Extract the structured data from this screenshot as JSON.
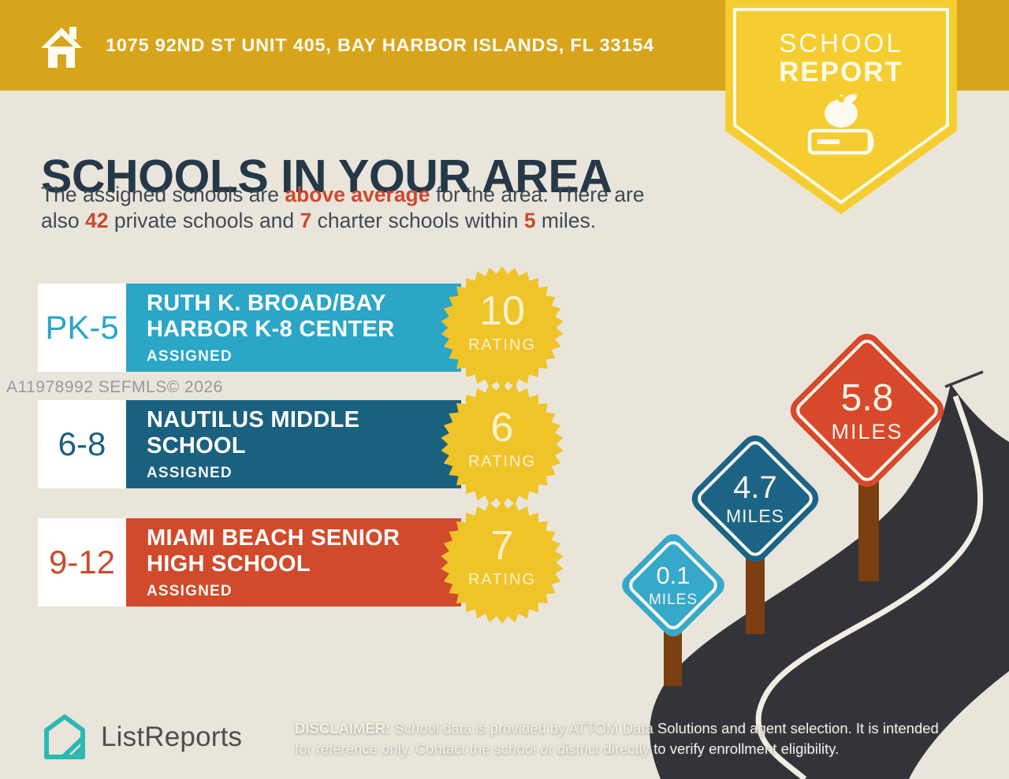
{
  "colors": {
    "header_gold": "#D7A41C",
    "ribbon_yellow": "#F5CD31",
    "background_beige": "#EAE5DB",
    "title_navy": "#253847",
    "accent_red": "#CE492E",
    "elementary_teal": "#2BA6C7",
    "middle_blue": "#1A607F",
    "high_red": "#D14A2B",
    "badge_yellow": "#EFC429",
    "road_charcoal": "#33343A",
    "post_brown": "#7A3E10",
    "brand_teal": "#2CB9B2"
  },
  "header": {
    "address": "1075 92ND ST UNIT 405, BAY HARBOR ISLANDS, FL 33154"
  },
  "ribbon": {
    "line1": "SCHOOL",
    "line2": "REPORT"
  },
  "main": {
    "title": "SCHOOLS IN YOUR AREA",
    "subtitle_lines": [
      [
        {
          "t": "The assigned schools are ",
          "b": false
        },
        {
          "t": "above average",
          "b": true
        },
        {
          "t": " for the area. There are",
          "b": false
        }
      ],
      [
        {
          "t": "also ",
          "b": false
        },
        {
          "t": "42",
          "b": true
        },
        {
          "t": " private schools and ",
          "b": false
        },
        {
          "t": "7",
          "b": true
        },
        {
          "t": " charter schools within ",
          "b": false
        },
        {
          "t": "5",
          "b": true
        },
        {
          "t": " miles.",
          "b": false
        }
      ]
    ]
  },
  "watermark": "A11978992  SEFMLS© 2026",
  "schools": [
    {
      "grades": "PK-5",
      "name_line1": "RUTH K. BROAD/BAY",
      "name_line2": "HARBOR K-8 CENTER",
      "status": "ASSIGNED",
      "rating": "10",
      "rating_label": "RATING"
    },
    {
      "grades": "6-8",
      "name_line1": "NAUTILUS MIDDLE",
      "name_line2": "SCHOOL",
      "status": "ASSIGNED",
      "rating": "6",
      "rating_label": "RATING"
    },
    {
      "grades": "9-12",
      "name_line1": "MIAMI BEACH SENIOR",
      "name_line2": "HIGH SCHOOL",
      "status": "ASSIGNED",
      "rating": "7",
      "rating_label": "RATING"
    }
  ],
  "distance_signs": [
    {
      "value": "0.1",
      "label": "MILES"
    },
    {
      "value": "4.7",
      "label": "MILES"
    },
    {
      "value": "5.8",
      "label": "MILES"
    }
  ],
  "footer": {
    "brand": "ListReports",
    "disclaimer_label": "DISCLAIMER:",
    "disclaimer_line1": " School data is provided by ATTOM Data Solutions and agent selection. It is intended",
    "disclaimer_line2": "for reference only. Contact the school or district directly to verify enrollment eligibility."
  }
}
